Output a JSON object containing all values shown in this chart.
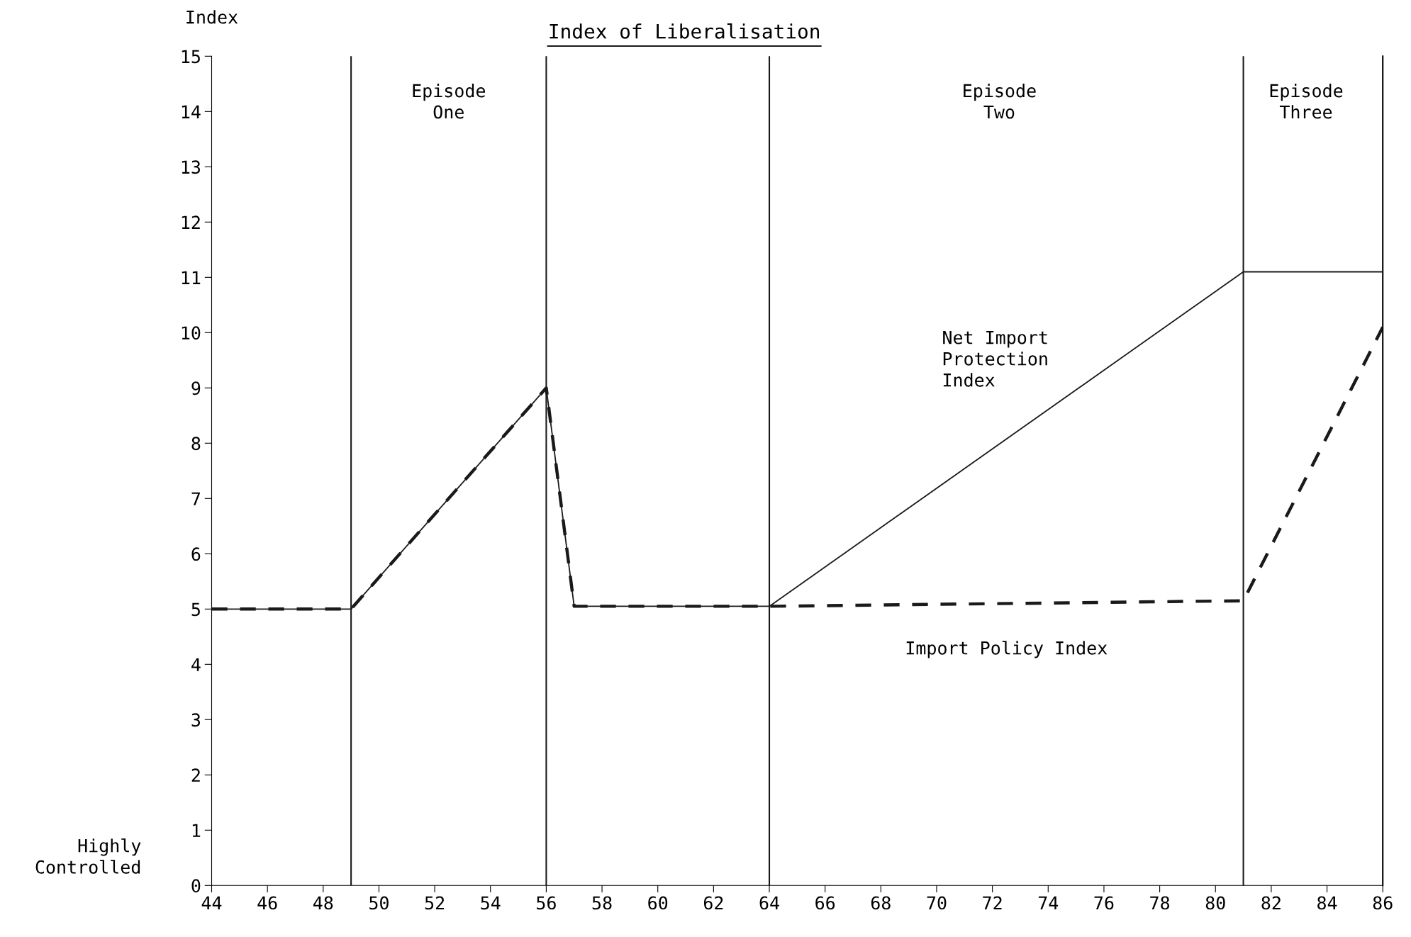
{
  "chart_data": {
    "type": "line",
    "title": "Index of Liberalisation",
    "ylabel": "Index",
    "x": [
      44,
      49,
      56,
      57,
      64,
      81,
      86
    ],
    "series": [
      {
        "name": "Net Import\nProtection\nIndex",
        "color": "#1a1a1a",
        "line_style": "solid",
        "values": [
          5,
          5,
          9,
          5.05,
          5.05,
          11.1,
          11.1
        ]
      },
      {
        "name": "Import Policy Index",
        "color": "#1a1a1a",
        "line_style": "dashed",
        "values": [
          5,
          5,
          9,
          5.05,
          5.05,
          5.15,
          10.1
        ]
      }
    ],
    "xlim": [
      44,
      86
    ],
    "ylim": [
      0,
      15
    ],
    "xticks": [
      44,
      46,
      48,
      50,
      52,
      54,
      56,
      58,
      60,
      62,
      64,
      66,
      68,
      70,
      72,
      74,
      76,
      78,
      80,
      82,
      84,
      86
    ],
    "yticks": [
      0,
      1,
      2,
      3,
      4,
      5,
      6,
      7,
      8,
      9,
      10,
      11,
      12,
      13,
      14,
      15
    ],
    "ref_lines": [
      {
        "axis": "x",
        "value": 49
      },
      {
        "axis": "x",
        "value": 56
      },
      {
        "axis": "x",
        "value": 64
      },
      {
        "axis": "x",
        "value": 81
      }
    ],
    "annotations": [
      "Highly\nControlled",
      "Episode\nOne",
      "Episode\nTwo",
      "Episode\nThree"
    ],
    "grid": false,
    "legend": false,
    "marker": "none"
  }
}
